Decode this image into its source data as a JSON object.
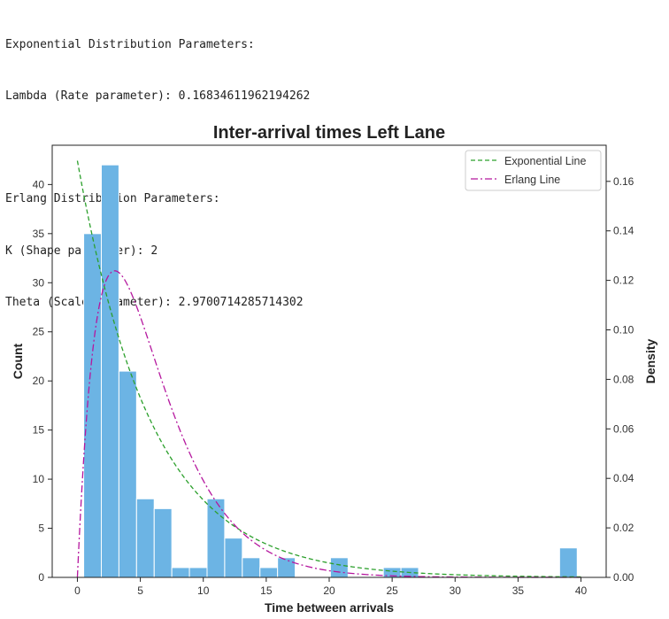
{
  "output": {
    "lines": [
      "Exponential Distribution Parameters:",
      "Lambda (Rate parameter): 0.16834611962194262",
      "",
      "Erlang Distribution Parameters:",
      "K (Shape parameter): 2",
      "Theta (Scale parameter): 2.9700714285714302"
    ]
  },
  "chart_data": {
    "type": "bar",
    "title": "Inter-arrival times Left Lane",
    "xlabel": "Time between arrivals",
    "ylabel": "Count",
    "y2label": "Density",
    "xlim": [
      -2,
      42
    ],
    "ylim": [
      0,
      44
    ],
    "y2lim": [
      0,
      0.1746
    ],
    "grid": false,
    "legend": "top-right",
    "x_ticks": [
      0,
      5,
      10,
      15,
      20,
      25,
      30,
      35,
      40
    ],
    "y_ticks": [
      0,
      5,
      10,
      15,
      20,
      25,
      30,
      35,
      40
    ],
    "y2_ticks": [
      "0.00",
      "0.02",
      "0.04",
      "0.06",
      "0.08",
      "0.10",
      "0.12",
      "0.14",
      "0.16"
    ],
    "histogram": {
      "color": "#6cb4e4",
      "bin_edges": [
        0.5,
        1.9,
        3.3,
        4.7,
        6.1,
        7.5,
        8.9,
        10.3,
        11.7,
        13.1,
        14.5,
        15.9,
        17.3,
        18.7,
        20.1,
        21.5,
        22.9,
        24.3,
        25.7,
        27.1,
        28.5,
        29.9,
        31.3,
        32.7,
        34.1,
        35.5,
        36.9,
        38.3,
        39.7
      ],
      "counts": [
        35,
        42,
        21,
        8,
        7,
        1,
        1,
        8,
        4,
        2,
        1,
        2,
        0,
        0,
        2,
        0,
        0,
        1,
        1,
        0,
        0,
        0,
        0,
        0,
        0,
        0,
        0,
        3
      ]
    },
    "series": [
      {
        "name": "Exponential Line",
        "color": "#2ca02c",
        "dash": "5,3",
        "dist": "exponential",
        "lambda": 0.16834611962194262
      },
      {
        "name": "Erlang Line",
        "color": "#b5179e",
        "dash": "8,3,2,3",
        "dist": "erlang",
        "k": 2,
        "theta": 2.9700714285714302
      }
    ]
  }
}
